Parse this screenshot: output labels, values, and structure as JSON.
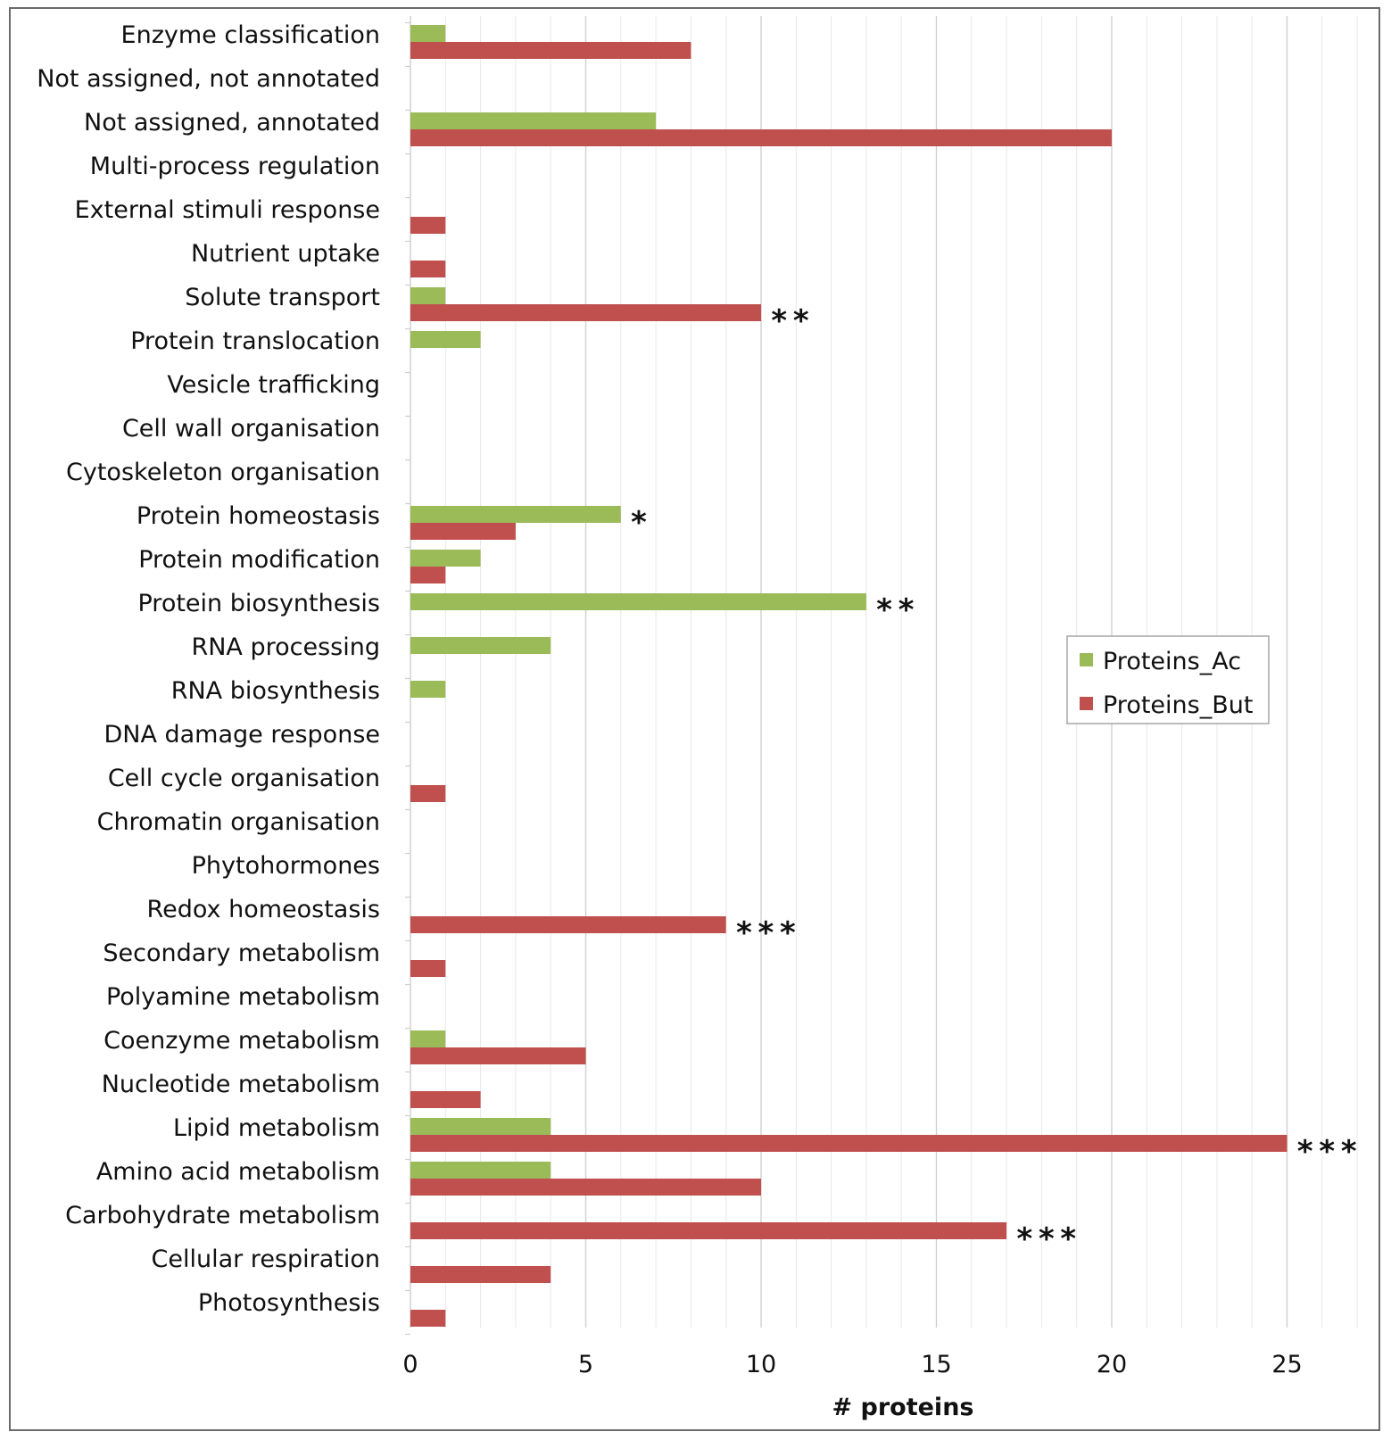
{
  "chart_data": {
    "type": "bar",
    "orientation": "horizontal",
    "title": "",
    "xlabel": "# proteins",
    "ylabel": "",
    "xlim": [
      0,
      27
    ],
    "xticks": [
      0,
      5,
      10,
      15,
      20,
      25
    ],
    "grid": "vertical minor gridlines at every 1 unit",
    "legend_position": "right-middle",
    "categories": [
      "Enzyme classification",
      "Not assigned, not annotated",
      "Not assigned, annotated",
      "Multi-process regulation",
      "External stimuli response",
      "Nutrient uptake",
      "Solute transport",
      "Protein translocation",
      "Vesicle trafficking",
      "Cell wall organisation",
      "Cytoskeleton organisation",
      "Protein homeostasis",
      "Protein modification",
      "Protein biosynthesis",
      "RNA processing",
      "RNA biosynthesis",
      "DNA damage response",
      "Cell cycle organisation",
      "Chromatin organisation",
      "Phytohormones",
      "Redox homeostasis",
      "Secondary metabolism",
      "Polyamine metabolism",
      "Coenzyme metabolism",
      "Nucleotide metabolism",
      "Lipid metabolism",
      "Amino acid metabolism",
      "Carbohydrate metabolism",
      "Cellular respiration",
      "Photosynthesis"
    ],
    "series": [
      {
        "name": "Proteins_Ac",
        "color": "#9bbb59",
        "values": [
          1,
          0,
          7,
          0,
          0,
          0,
          1,
          2,
          0,
          0,
          0,
          6,
          2,
          13,
          4,
          1,
          0,
          0,
          0,
          0,
          0,
          0,
          0,
          1,
          0,
          4,
          4,
          0,
          0,
          0
        ]
      },
      {
        "name": "Proteins_But",
        "color": "#c0504d",
        "values": [
          8,
          0,
          20,
          0,
          1,
          1,
          10,
          0,
          0,
          0,
          0,
          3,
          1,
          0,
          0,
          0,
          0,
          1,
          0,
          0,
          9,
          1,
          0,
          5,
          2,
          25,
          10,
          17,
          4,
          1
        ]
      }
    ],
    "annotations": [
      {
        "category": "Solute transport",
        "series": "Proteins_But",
        "text": "**"
      },
      {
        "category": "Protein homeostasis",
        "series": "Proteins_Ac",
        "text": "*"
      },
      {
        "category": "Protein biosynthesis",
        "series": "Proteins_Ac",
        "text": "**"
      },
      {
        "category": "Redox homeostasis",
        "series": "Proteins_But",
        "text": "***"
      },
      {
        "category": "Lipid metabolism",
        "series": "Proteins_But",
        "text": "***"
      },
      {
        "category": "Carbohydrate metabolism",
        "series": "Proteins_But",
        "text": "***"
      }
    ]
  }
}
